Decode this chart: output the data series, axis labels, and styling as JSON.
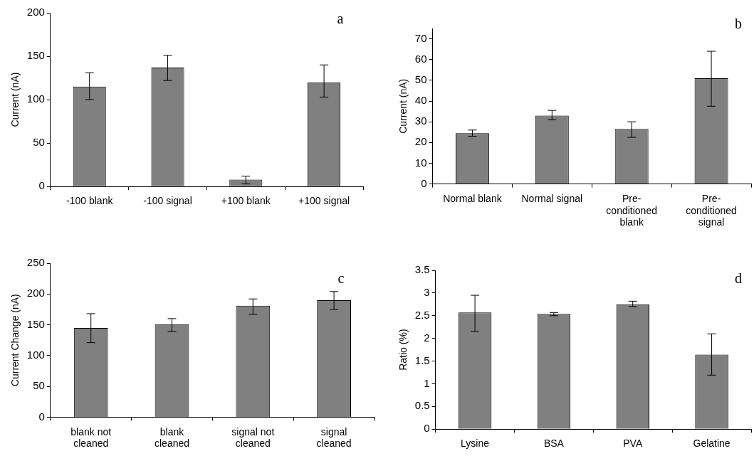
{
  "chart_data": [
    {
      "type": "bar",
      "ylabel": "Current (nA)",
      "categories": [
        "-100 blank",
        "-100 signal",
        "+100 blank",
        "+100 signal"
      ],
      "values": [
        115,
        137,
        8,
        120
      ],
      "errors": [
        [
          100,
          131
        ],
        [
          122,
          151
        ],
        [
          3,
          12
        ],
        [
          103,
          140
        ]
      ],
      "color": "#808080",
      "ylim": [
        0,
        200
      ],
      "yticks": [
        0,
        50,
        100,
        150,
        200
      ],
      "grid": false,
      "legend": false,
      "annotations": [
        "a"
      ]
    },
    {
      "type": "bar",
      "ylabel": "Current (nA)",
      "categories": [
        "Normal blank",
        "Normal signal",
        "Pre-conditioned blank",
        "Pre-conditioned signal"
      ],
      "values": [
        24.5,
        33,
        26.5,
        51
      ],
      "errors": [
        [
          23,
          26
        ],
        [
          31,
          35.5
        ],
        [
          22.5,
          30
        ],
        [
          37.5,
          64
        ]
      ],
      "color": "#808080",
      "ylim": [
        0,
        75
      ],
      "yticks": [
        0,
        10,
        20,
        30,
        40,
        50,
        60,
        70
      ],
      "grid": false,
      "legend": false,
      "annotations": [
        "b"
      ]
    },
    {
      "type": "bar",
      "ylabel": "Current Change (nA)",
      "categories": [
        "blank not cleaned",
        "blank cleaned",
        "signal not cleaned",
        "signal cleaned"
      ],
      "values": [
        145,
        151,
        181,
        190
      ],
      "errors": [
        [
          121,
          168
        ],
        [
          139,
          160
        ],
        [
          167,
          192
        ],
        [
          175,
          204
        ]
      ],
      "color": "#808080",
      "ylim": [
        0,
        250
      ],
      "yticks": [
        0,
        50,
        100,
        150,
        200,
        250
      ],
      "grid": false,
      "legend": false,
      "annotations": [
        "c"
      ]
    },
    {
      "type": "bar",
      "ylabel": "Ratio (%)",
      "categories": [
        "Lysine",
        "BSA",
        "PVA",
        "Gelatine"
      ],
      "values": [
        2.57,
        2.54,
        2.75,
        1.64
      ],
      "errors": [
        [
          2.15,
          2.95
        ],
        [
          2.5,
          2.57
        ],
        [
          2.7,
          2.82
        ],
        [
          1.19,
          2.1
        ]
      ],
      "color": "#808080",
      "ylim": [
        0,
        3.5
      ],
      "yticks": [
        0,
        0.5,
        1,
        1.5,
        2,
        2.5,
        3,
        3.5
      ],
      "grid": false,
      "legend": false,
      "annotations": [
        "d"
      ]
    }
  ]
}
